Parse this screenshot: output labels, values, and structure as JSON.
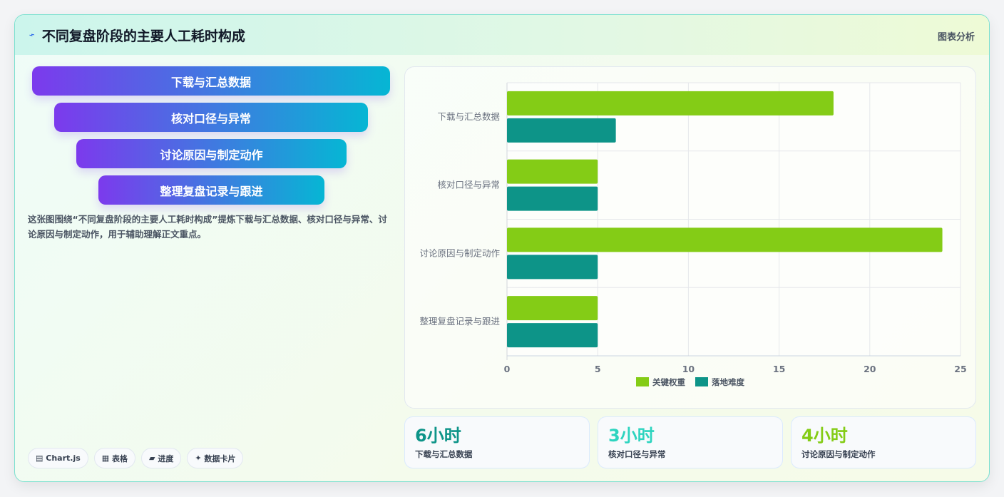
{
  "header": {
    "title": "不同复盘阶段的主要人工耗时构成",
    "right_label": "图表分析",
    "icon": "lightning-icon"
  },
  "funnel": [
    "下载与汇总数据",
    "核对口径与异常",
    "讨论原因与制定动作",
    "整理复盘记录与跟进"
  ],
  "description": "这张图围绕“不同复盘阶段的主要人工耗时构成”提炼下载与汇总数据、核对口径与异常、讨论原因与制定动作，用于辅助理解正文重点。",
  "tags": [
    {
      "icon": "chart-icon",
      "glyph": "▤",
      "label": "Chart.js"
    },
    {
      "icon": "table-icon",
      "glyph": "▦",
      "label": "表格"
    },
    {
      "icon": "progress-icon",
      "glyph": "▰",
      "label": "进度"
    },
    {
      "icon": "sparkle-icon",
      "glyph": "✦",
      "label": "数据卡片"
    }
  ],
  "stats": [
    {
      "value": "6小时",
      "label": "下载与汇总数据",
      "color": "#0d9488"
    },
    {
      "value": "3小时",
      "label": "核对口径与异常",
      "color": "#2dd4bf"
    },
    {
      "value": "4小时",
      "label": "讨论原因与制定动作",
      "color": "#84cc16"
    }
  ],
  "chart_data": {
    "type": "bar",
    "orientation": "horizontal",
    "categories": [
      "下载与汇总数据",
      "核对口径与异常",
      "讨论原因与制定动作",
      "整理复盘记录与跟进"
    ],
    "series": [
      {
        "name": "关键权重",
        "values": [
          18,
          5,
          24,
          5
        ],
        "color": "#84cc16"
      },
      {
        "name": "落地难度",
        "values": [
          6,
          5,
          5,
          5
        ],
        "color": "#0d9488"
      }
    ],
    "xlim": [
      0,
      25
    ],
    "xticks": [
      0,
      5,
      10,
      15,
      20,
      25
    ],
    "grid": true,
    "legend": "bottom"
  }
}
